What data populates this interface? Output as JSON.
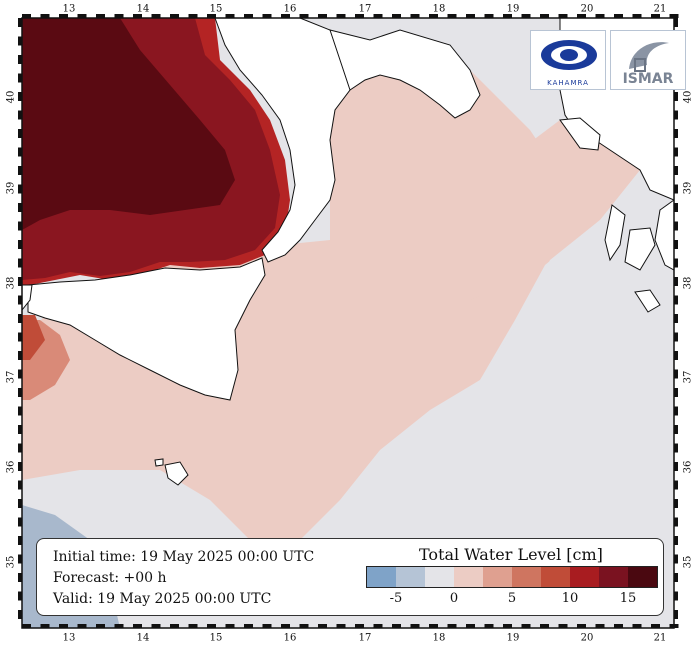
{
  "map": {
    "lon_ticks": [
      "13",
      "14",
      "15",
      "16",
      "17",
      "18",
      "19",
      "20",
      "21"
    ],
    "lat_ticks": [
      "40",
      "39",
      "38",
      "37",
      "36",
      "35"
    ]
  },
  "info": {
    "initial_time": "Initial time: 19 May 2025 00:00 UTC",
    "forecast": "Forecast: +00 h",
    "valid": "Valid: 19 May 2025 00:00 UTC"
  },
  "legend": {
    "title": "Total Water Level [cm]",
    "tick_labels": [
      "-5",
      "0",
      "5",
      "10",
      "15"
    ],
    "colors": [
      "#7fa3c8",
      "#b5c4d6",
      "#e4e4e8",
      "#ecccc4",
      "#dfa090",
      "#cf7560",
      "#c04c38",
      "#a81c20",
      "#7a1220",
      "#4a0810"
    ]
  },
  "logos": {
    "left_text": "KAHAMRA",
    "right_text": "ISMAR"
  },
  "colors": {
    "land": "#ffffff",
    "sea_neutral": "#e4e4e8",
    "sea_light_red": "#ecccc4",
    "sea_dark": "#5a0a12",
    "sea_mid": "#8a1620",
    "sea_red": "#b42424",
    "sea_blue": "#a8b8cc"
  }
}
